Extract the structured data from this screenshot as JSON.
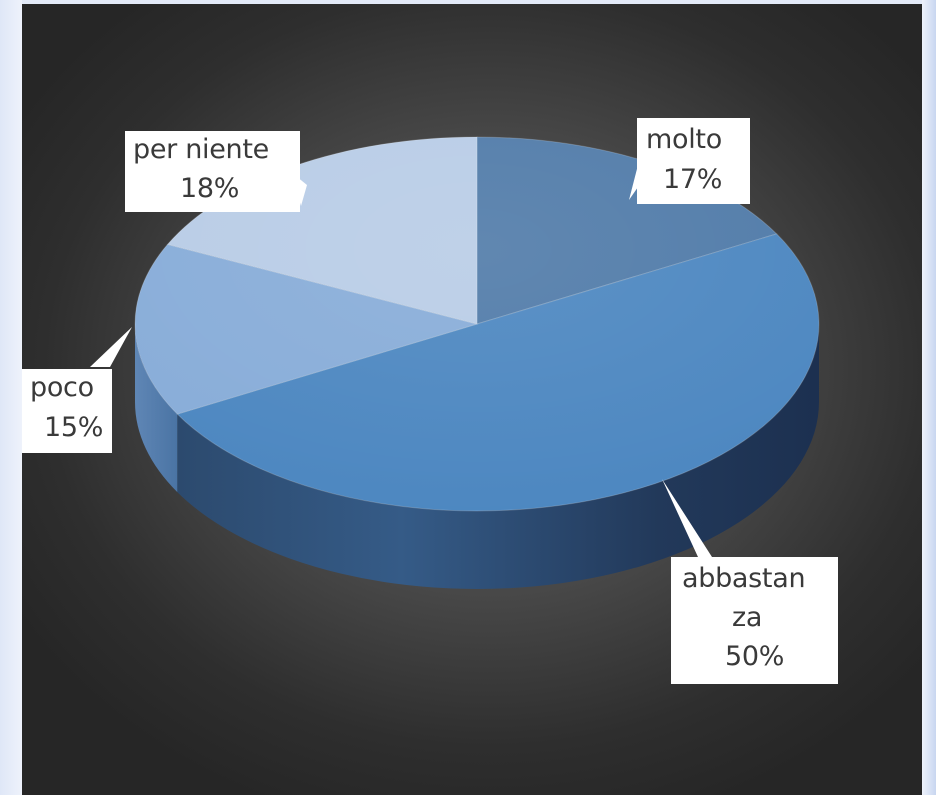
{
  "chart_data": {
    "type": "pie",
    "style": "3d",
    "slices": [
      {
        "name": "molto",
        "value": 17,
        "label": "17%",
        "color": "#4f7aa8"
      },
      {
        "name": "abbastanza",
        "value": 50,
        "label": "50%",
        "color": "#4b86c0"
      },
      {
        "name": "poco",
        "value": 15,
        "label": "15%",
        "color": "#87acd8"
      },
      {
        "name": "per niente",
        "value": 18,
        "label": "18%",
        "color": "#b8cce6"
      }
    ],
    "labels": {
      "molto": {
        "name_lines": [
          "molto"
        ],
        "value": "17%"
      },
      "abbastanza": {
        "name_lines": [
          "abbastan",
          "za"
        ],
        "value": "50%"
      },
      "poco": {
        "name_lines": [
          "poco"
        ],
        "value": "15%"
      },
      "per_niente": {
        "name_lines": [
          "per niente"
        ],
        "value": "18%"
      }
    },
    "legend": "none",
    "background": "dark radial gradient"
  }
}
